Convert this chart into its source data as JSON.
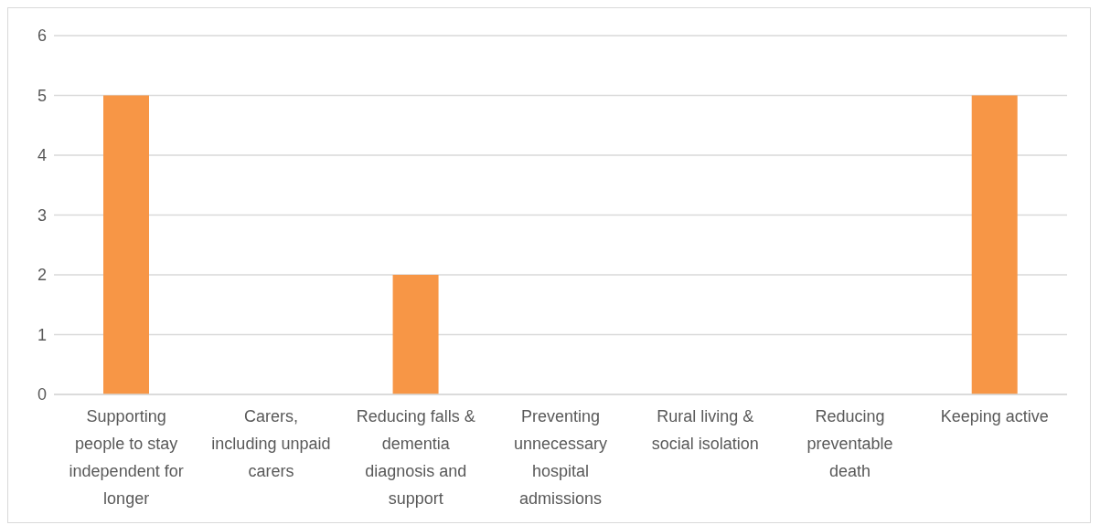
{
  "chart_data": {
    "type": "bar",
    "categories": [
      "Supporting people to stay independent for longer",
      "Carers, including unpaid carers",
      "Reducing falls & dementia diagnosis and support",
      "Preventing unnecessary hospital admissions",
      "Rural living & social isolation",
      "Reducing preventable death",
      "Keeping active"
    ],
    "values": [
      5,
      0,
      2,
      0,
      0,
      0,
      5
    ],
    "color": "#f79646",
    "ylim": [
      0,
      6
    ],
    "yticks": [
      0,
      1,
      2,
      3,
      4,
      5,
      6
    ],
    "grid": "y"
  }
}
